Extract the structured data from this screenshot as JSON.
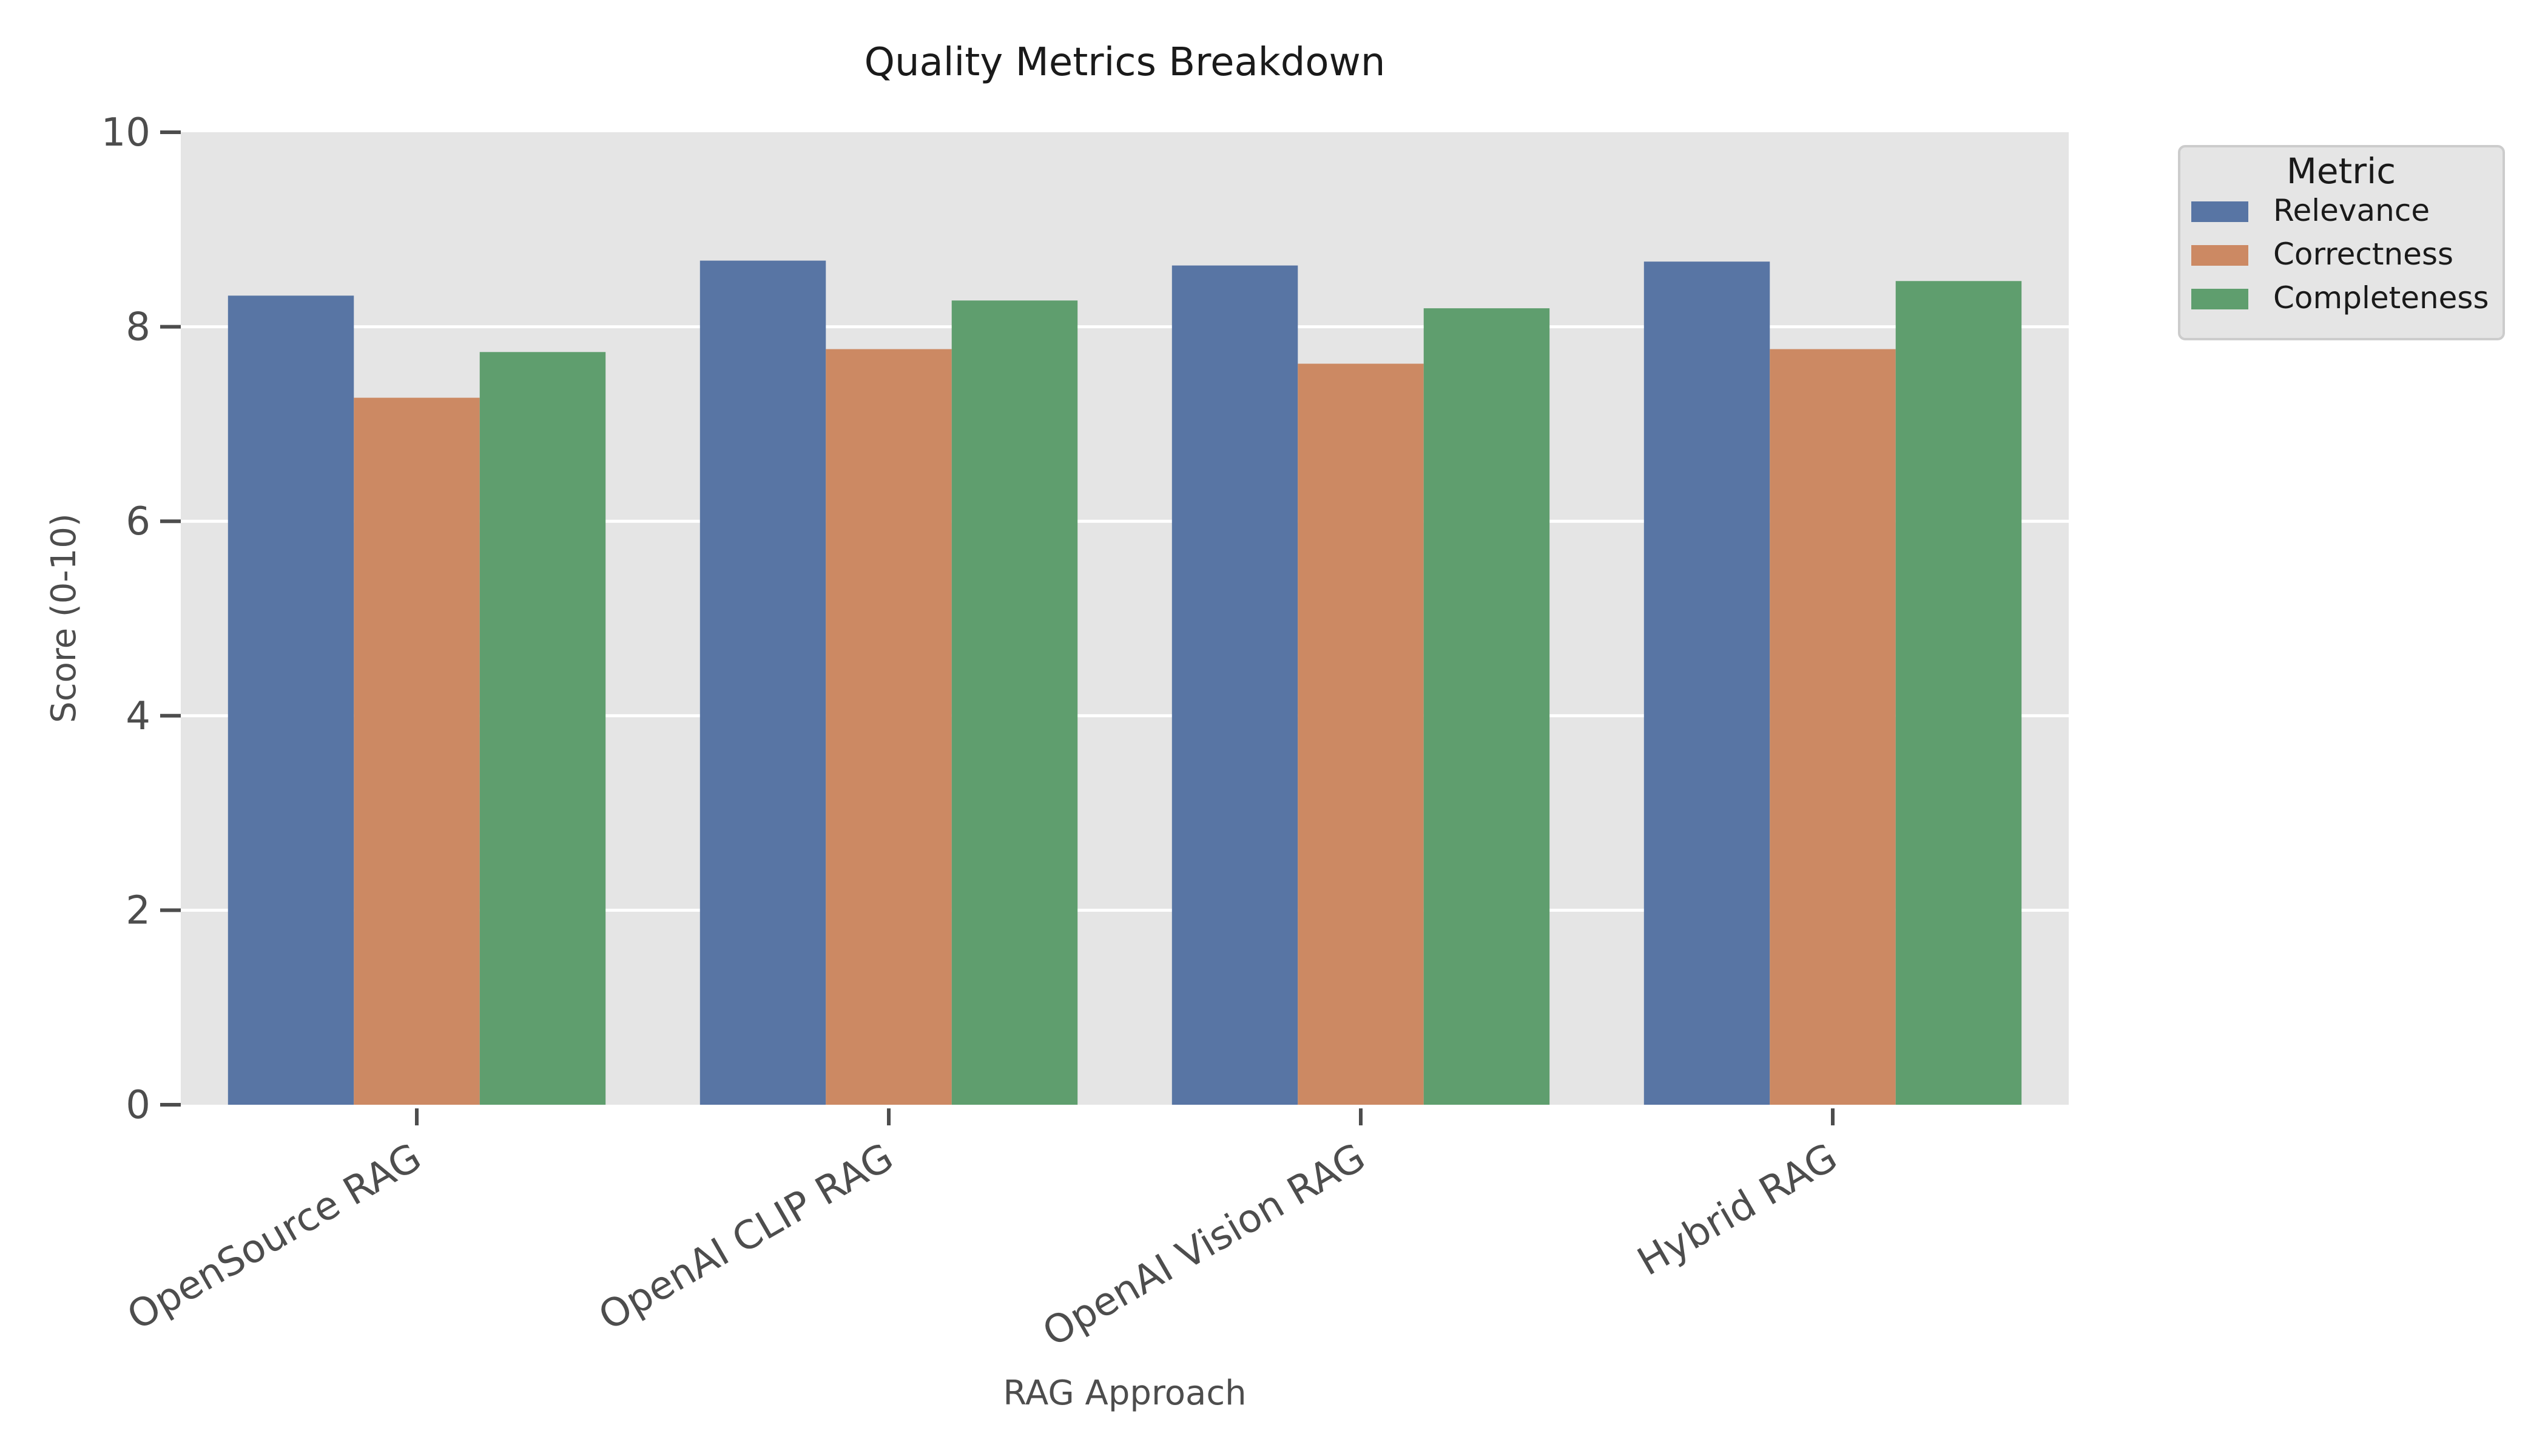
{
  "chart_data": {
    "type": "bar",
    "title": "Quality Metrics Breakdown",
    "xlabel": "RAG Approach",
    "ylabel": "Score (0-10)",
    "categories": [
      "OpenSource RAG",
      "OpenAI CLIP RAG",
      "OpenAI Vision RAG",
      "Hybrid RAG"
    ],
    "series": [
      {
        "name": "Relevance",
        "values": [
          8.32,
          8.68,
          8.63,
          8.67
        ]
      },
      {
        "name": "Correctness",
        "values": [
          7.27,
          7.77,
          7.62,
          7.77
        ]
      },
      {
        "name": "Completeness",
        "values": [
          7.74,
          8.27,
          8.19,
          8.47
        ]
      }
    ],
    "ylim": [
      0,
      10
    ],
    "yticks": [
      "0",
      "2",
      "4",
      "6",
      "8",
      "10"
    ],
    "grid": true,
    "legend": {
      "title": "Metric",
      "placement": "outside-top-right"
    },
    "colors": {
      "Relevance": "#5875a4",
      "Correctness": "#cc8963",
      "Completeness": "#5f9e6e",
      "plot_background": "#e5e5e5",
      "gridline": "#ffffff"
    }
  }
}
